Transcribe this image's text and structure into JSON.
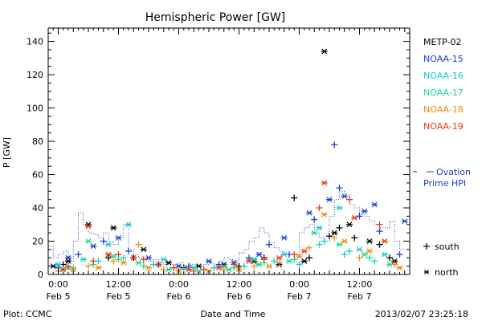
{
  "chart_data": {
    "type": "scatter",
    "title": "Hemispheric Power [GW]",
    "ylabel": "P [GW]",
    "xlabel": "Date and Time",
    "ylim": [
      0,
      148
    ],
    "yticks": [
      0,
      20,
      40,
      60,
      80,
      100,
      120,
      140
    ],
    "xlim_hours": [
      -2,
      70
    ],
    "xticks": [
      {
        "hour": 0,
        "time": "0:00",
        "date": "Feb 5"
      },
      {
        "hour": 12,
        "time": "12:00",
        "date": "Feb 5"
      },
      {
        "hour": 24,
        "time": "0:00",
        "date": "Feb 6"
      },
      {
        "hour": 36,
        "time": "12:00",
        "date": "Feb 6"
      },
      {
        "hour": 48,
        "time": "0:00",
        "date": "Feb 7"
      },
      {
        "hour": 60,
        "time": "12:00",
        "date": "Feb 7"
      }
    ],
    "legend_position": "right",
    "marker_legend": [
      {
        "symbol": "+",
        "label": "south"
      },
      {
        "symbol": "*",
        "label": "north"
      }
    ],
    "ovation_label": [
      "Ovation",
      "Prime HPI"
    ],
    "ovation_color": "#1a3fc8",
    "ovation": {
      "x": [
        -2,
        -1,
        0,
        1,
        2,
        3,
        4,
        5,
        6,
        7,
        8,
        9,
        10,
        11,
        12,
        13,
        14,
        15,
        16,
        17,
        18,
        19,
        20,
        21,
        22,
        23,
        24,
        25,
        26,
        27,
        28,
        29,
        30,
        31,
        32,
        33,
        34,
        35,
        36,
        37,
        38,
        39,
        40,
        41,
        42,
        43,
        44,
        45,
        46,
        47,
        48,
        49,
        50,
        51,
        52,
        53,
        54,
        55,
        56,
        57,
        58,
        59,
        60,
        61,
        62,
        63,
        64,
        65,
        66,
        67,
        68
      ],
      "y": [
        17,
        10,
        12,
        14,
        8,
        20,
        37,
        30,
        25,
        24,
        22,
        25,
        20,
        18,
        22,
        30,
        15,
        12,
        10,
        9,
        8,
        9,
        7,
        6,
        6,
        6,
        7,
        5,
        6,
        6,
        5,
        6,
        7,
        5,
        8,
        10,
        9,
        8,
        13,
        15,
        20,
        22,
        28,
        25,
        19,
        16,
        14,
        12,
        12,
        10,
        25,
        28,
        30,
        25,
        22,
        20,
        35,
        45,
        50,
        48,
        42,
        40,
        36,
        35,
        32,
        30,
        28,
        28,
        32,
        20,
        15
      ]
    },
    "series": [
      {
        "name": "METP-02",
        "color": "#000000",
        "south": [
          [
            1,
            6
          ],
          [
            10,
            10
          ],
          [
            15,
            10
          ],
          [
            25,
            4
          ],
          [
            36,
            5
          ],
          [
            41,
            10
          ],
          [
            47,
            46
          ],
          [
            50,
            10
          ],
          [
            54,
            23
          ],
          [
            56,
            28
          ],
          [
            59,
            22
          ],
          [
            64,
            18
          ],
          [
            66,
            10
          ]
        ],
        "north": [
          [
            -1,
            5
          ],
          [
            2,
            8
          ],
          [
            6,
            30
          ],
          [
            11,
            28
          ],
          [
            17,
            15
          ],
          [
            22,
            7
          ],
          [
            28,
            5
          ],
          [
            33,
            6
          ],
          [
            39,
            8
          ],
          [
            44,
            6
          ],
          [
            49,
            8
          ],
          [
            53,
            134
          ],
          [
            55,
            25
          ],
          [
            58,
            30
          ],
          [
            62,
            20
          ],
          [
            67,
            8
          ]
        ]
      },
      {
        "name": "NOAA-15",
        "color": "#1d3fd0",
        "south": [
          [
            0,
            4
          ],
          [
            4,
            12
          ],
          [
            9,
            20
          ],
          [
            14,
            14
          ],
          [
            20,
            6
          ],
          [
            26,
            5
          ],
          [
            32,
            6
          ],
          [
            38,
            10
          ],
          [
            42,
            18
          ],
          [
            46,
            12
          ],
          [
            51,
            33
          ],
          [
            55,
            78
          ],
          [
            56,
            52
          ],
          [
            60,
            35
          ],
          [
            64,
            26
          ],
          [
            68,
            12
          ]
        ],
        "north": [
          [
            2,
            10
          ],
          [
            7,
            17
          ],
          [
            12,
            22
          ],
          [
            18,
            10
          ],
          [
            24,
            5
          ],
          [
            30,
            8
          ],
          [
            35,
            7
          ],
          [
            40,
            12
          ],
          [
            45,
            22
          ],
          [
            50,
            37
          ],
          [
            54,
            45
          ],
          [
            57,
            47
          ],
          [
            61,
            38
          ],
          [
            63,
            42
          ],
          [
            69,
            32
          ]
        ]
      },
      {
        "name": "NOAA-16",
        "color": "#15c8d8",
        "south": [
          [
            3,
            4
          ],
          [
            8,
            8
          ],
          [
            13,
            10
          ],
          [
            19,
            6
          ],
          [
            25,
            3
          ],
          [
            31,
            4
          ],
          [
            37,
            5
          ],
          [
            43,
            8
          ],
          [
            48,
            6
          ],
          [
            53,
            20
          ],
          [
            57,
            12
          ],
          [
            62,
            10
          ]
        ],
        "north": [
          [
            0,
            6
          ],
          [
            5,
            9
          ],
          [
            10,
            18
          ],
          [
            14,
            30
          ],
          [
            21,
            9
          ],
          [
            27,
            4
          ],
          [
            33,
            5
          ],
          [
            39,
            9
          ],
          [
            45,
            12
          ],
          [
            52,
            28
          ],
          [
            56,
            40
          ],
          [
            60,
            15
          ],
          [
            65,
            12
          ]
        ]
      },
      {
        "name": "NOAA-17",
        "color": "#22d890",
        "south": [
          [
            1,
            3
          ],
          [
            7,
            6
          ],
          [
            12,
            9
          ],
          [
            17,
            5
          ],
          [
            23,
            4
          ],
          [
            29,
            3
          ],
          [
            35,
            4
          ],
          [
            41,
            7
          ],
          [
            47,
            9
          ],
          [
            52,
            18
          ],
          [
            58,
            14
          ],
          [
            63,
            8
          ]
        ],
        "north": [
          [
            2,
            4
          ],
          [
            6,
            20
          ],
          [
            11,
            11
          ],
          [
            16,
            7
          ],
          [
            22,
            3
          ],
          [
            28,
            2
          ],
          [
            34,
            3
          ],
          [
            40,
            6
          ],
          [
            46,
            8
          ],
          [
            51,
            25
          ],
          [
            56,
            18
          ],
          [
            61,
            12
          ],
          [
            66,
            6
          ]
        ]
      },
      {
        "name": "NOAA-18",
        "color": "#f08c10",
        "south": [
          [
            0,
            2
          ],
          [
            6,
            5
          ],
          [
            11,
            8
          ],
          [
            16,
            18
          ],
          [
            21,
            3
          ],
          [
            27,
            2
          ],
          [
            33,
            3
          ],
          [
            39,
            5
          ],
          [
            44,
            7
          ],
          [
            50,
            16
          ],
          [
            55,
            22
          ],
          [
            60,
            10
          ],
          [
            67,
            6
          ]
        ],
        "north": [
          [
            3,
            3
          ],
          [
            8,
            4
          ],
          [
            13,
            7
          ],
          [
            18,
            4
          ],
          [
            24,
            2
          ],
          [
            30,
            2
          ],
          [
            36,
            3
          ],
          [
            42,
            5
          ],
          [
            48,
            11
          ],
          [
            53,
            36
          ],
          [
            57,
            20
          ],
          [
            62,
            14
          ],
          [
            68,
            4
          ]
        ]
      },
      {
        "name": "NOAA-19",
        "color": "#e83a12",
        "south": [
          [
            2,
            5
          ],
          [
            7,
            8
          ],
          [
            12,
            12
          ],
          [
            17,
            9
          ],
          [
            23,
            4
          ],
          [
            29,
            3
          ],
          [
            35,
            6
          ],
          [
            41,
            9
          ],
          [
            47,
            12
          ],
          [
            52,
            40
          ],
          [
            58,
            45
          ],
          [
            64,
            30
          ]
        ],
        "north": [
          [
            1,
            3
          ],
          [
            6,
            29
          ],
          [
            10,
            12
          ],
          [
            15,
            10
          ],
          [
            20,
            6
          ],
          [
            26,
            3
          ],
          [
            32,
            4
          ],
          [
            38,
            8
          ],
          [
            44,
            10
          ],
          [
            49,
            14
          ],
          [
            53,
            55
          ],
          [
            59,
            34
          ],
          [
            65,
            20
          ]
        ]
      }
    ]
  },
  "footer": {
    "left": "Plot: CCMC",
    "right": "2013/02/07 23:25:18"
  }
}
